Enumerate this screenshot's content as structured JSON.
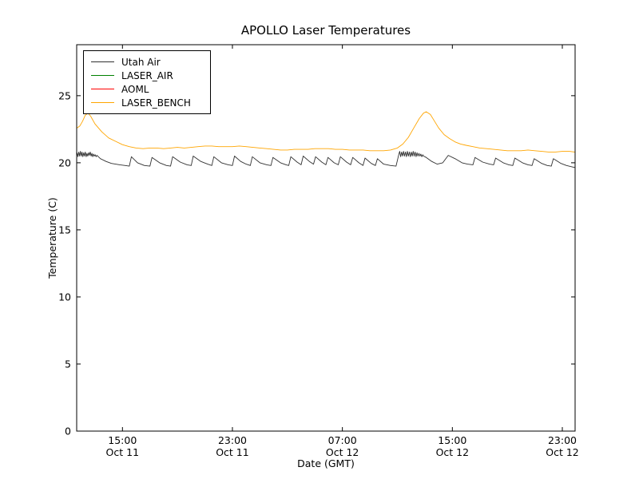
{
  "chart_data": {
    "type": "line",
    "title": "APOLLO Laser Temperatures",
    "xlabel": "Date (GMT)",
    "ylabel": "Temperature (C)",
    "grid": false,
    "legend_position": "upper left",
    "x_unit": "hours since Oct 11 00:00 GMT",
    "xlim": [
      11.67,
      47.93
    ],
    "ylim": [
      0,
      28.8
    ],
    "yticks": [
      0,
      5,
      10,
      15,
      20,
      25
    ],
    "xticks": [
      {
        "value": 15,
        "time": "15:00",
        "date": "Oct 11"
      },
      {
        "value": 23,
        "time": "23:00",
        "date": "Oct 11"
      },
      {
        "value": 31,
        "time": "07:00",
        "date": "Oct 12"
      },
      {
        "value": 39,
        "time": "15:00",
        "date": "Oct 12"
      },
      {
        "value": 47,
        "time": "23:00",
        "date": "Oct 12"
      }
    ],
    "series": [
      {
        "name": "Utah Air",
        "color": "#303030",
        "points": [
          [
            11.7,
            20.75
          ],
          [
            11.76,
            20.45
          ],
          [
            11.82,
            20.8
          ],
          [
            11.88,
            20.5
          ],
          [
            11.94,
            20.85
          ],
          [
            12.0,
            20.5
          ],
          [
            12.06,
            20.8
          ],
          [
            12.12,
            20.45
          ],
          [
            12.18,
            20.75
          ],
          [
            12.24,
            20.5
          ],
          [
            12.3,
            20.8
          ],
          [
            12.36,
            20.45
          ],
          [
            12.42,
            20.7
          ],
          [
            12.48,
            20.5
          ],
          [
            12.54,
            20.75
          ],
          [
            12.6,
            20.55
          ],
          [
            12.66,
            20.8
          ],
          [
            12.72,
            20.5
          ],
          [
            12.78,
            20.7
          ],
          [
            12.84,
            20.45
          ],
          [
            12.9,
            20.65
          ],
          [
            12.96,
            20.5
          ],
          [
            13.02,
            20.6
          ],
          [
            13.08,
            20.45
          ],
          [
            13.14,
            20.55
          ],
          [
            13.4,
            20.3
          ],
          [
            13.8,
            20.1
          ],
          [
            14.2,
            19.95
          ],
          [
            14.8,
            19.85
          ],
          [
            15.2,
            19.8
          ],
          [
            15.5,
            19.75
          ],
          [
            15.65,
            20.45
          ],
          [
            16.1,
            20.0
          ],
          [
            16.6,
            19.8
          ],
          [
            17.0,
            19.75
          ],
          [
            17.15,
            20.4
          ],
          [
            17.7,
            20.0
          ],
          [
            18.2,
            19.8
          ],
          [
            18.5,
            19.75
          ],
          [
            18.65,
            20.45
          ],
          [
            19.2,
            20.05
          ],
          [
            19.7,
            19.85
          ],
          [
            20.0,
            19.8
          ],
          [
            20.15,
            20.5
          ],
          [
            20.7,
            20.1
          ],
          [
            21.2,
            19.9
          ],
          [
            21.5,
            19.8
          ],
          [
            21.65,
            20.45
          ],
          [
            22.2,
            20.0
          ],
          [
            22.7,
            19.85
          ],
          [
            23.0,
            19.8
          ],
          [
            23.15,
            20.5
          ],
          [
            23.6,
            20.1
          ],
          [
            24.0,
            19.9
          ],
          [
            24.3,
            19.8
          ],
          [
            24.45,
            20.45
          ],
          [
            25.0,
            20.0
          ],
          [
            25.5,
            19.85
          ],
          [
            25.8,
            19.8
          ],
          [
            25.95,
            20.4
          ],
          [
            26.5,
            20.0
          ],
          [
            26.9,
            19.85
          ],
          [
            27.1,
            19.8
          ],
          [
            27.25,
            20.45
          ],
          [
            27.7,
            20.05
          ],
          [
            28.0,
            19.85
          ],
          [
            28.15,
            20.5
          ],
          [
            28.6,
            20.1
          ],
          [
            28.9,
            19.9
          ],
          [
            29.05,
            20.45
          ],
          [
            29.5,
            20.05
          ],
          [
            29.8,
            19.85
          ],
          [
            29.95,
            20.4
          ],
          [
            30.4,
            20.0
          ],
          [
            30.7,
            19.85
          ],
          [
            30.85,
            20.45
          ],
          [
            31.3,
            20.05
          ],
          [
            31.6,
            19.85
          ],
          [
            31.75,
            20.4
          ],
          [
            32.2,
            20.0
          ],
          [
            32.5,
            19.8
          ],
          [
            32.65,
            20.35
          ],
          [
            33.1,
            19.95
          ],
          [
            33.4,
            19.8
          ],
          [
            33.55,
            20.3
          ],
          [
            34.0,
            19.9
          ],
          [
            34.5,
            19.8
          ],
          [
            34.9,
            19.75
          ],
          [
            35.1,
            20.6
          ],
          [
            35.17,
            20.85
          ],
          [
            35.24,
            20.45
          ],
          [
            35.31,
            20.8
          ],
          [
            35.38,
            20.5
          ],
          [
            35.45,
            20.85
          ],
          [
            35.52,
            20.5
          ],
          [
            35.59,
            20.8
          ],
          [
            35.66,
            20.45
          ],
          [
            35.73,
            20.85
          ],
          [
            35.8,
            20.5
          ],
          [
            35.87,
            20.8
          ],
          [
            35.94,
            20.45
          ],
          [
            36.01,
            20.8
          ],
          [
            36.08,
            20.5
          ],
          [
            36.15,
            20.85
          ],
          [
            36.22,
            20.5
          ],
          [
            36.29,
            20.8
          ],
          [
            36.36,
            20.45
          ],
          [
            36.43,
            20.75
          ],
          [
            36.5,
            20.5
          ],
          [
            36.57,
            20.7
          ],
          [
            36.64,
            20.5
          ],
          [
            36.71,
            20.65
          ],
          [
            36.78,
            20.45
          ],
          [
            36.85,
            20.6
          ],
          [
            36.9,
            20.5
          ],
          [
            37.1,
            20.4
          ],
          [
            37.5,
            20.1
          ],
          [
            37.9,
            19.9
          ],
          [
            38.3,
            20.0
          ],
          [
            38.7,
            20.55
          ],
          [
            39.2,
            20.3
          ],
          [
            39.7,
            20.0
          ],
          [
            40.1,
            19.9
          ],
          [
            40.5,
            19.85
          ],
          [
            40.65,
            20.4
          ],
          [
            41.2,
            20.05
          ],
          [
            41.7,
            19.9
          ],
          [
            42.0,
            19.85
          ],
          [
            42.15,
            20.35
          ],
          [
            42.7,
            20.0
          ],
          [
            43.1,
            19.85
          ],
          [
            43.4,
            19.8
          ],
          [
            43.55,
            20.35
          ],
          [
            44.1,
            20.0
          ],
          [
            44.5,
            19.85
          ],
          [
            44.8,
            19.8
          ],
          [
            44.95,
            20.3
          ],
          [
            45.5,
            19.95
          ],
          [
            45.9,
            19.8
          ],
          [
            46.2,
            19.75
          ],
          [
            46.35,
            20.3
          ],
          [
            46.9,
            19.95
          ],
          [
            47.3,
            19.8
          ],
          [
            47.9,
            19.65
          ]
        ]
      },
      {
        "name": "LASER_AIR",
        "color": "#008000",
        "points": []
      },
      {
        "name": "AOML",
        "color": "#ff0000",
        "points": []
      },
      {
        "name": "LASER_BENCH",
        "color": "#ffa500",
        "points": [
          [
            11.7,
            22.6
          ],
          [
            11.9,
            22.75
          ],
          [
            12.1,
            23.1
          ],
          [
            12.3,
            23.55
          ],
          [
            12.5,
            23.7
          ],
          [
            12.7,
            23.45
          ],
          [
            13.0,
            22.9
          ],
          [
            13.5,
            22.3
          ],
          [
            14.0,
            21.85
          ],
          [
            14.5,
            21.6
          ],
          [
            15.0,
            21.35
          ],
          [
            15.5,
            21.2
          ],
          [
            16.0,
            21.1
          ],
          [
            16.5,
            21.05
          ],
          [
            17.0,
            21.1
          ],
          [
            17.5,
            21.1
          ],
          [
            18.0,
            21.05
          ],
          [
            18.5,
            21.1
          ],
          [
            19.0,
            21.15
          ],
          [
            19.5,
            21.1
          ],
          [
            20.0,
            21.15
          ],
          [
            20.5,
            21.2
          ],
          [
            21.0,
            21.25
          ],
          [
            21.5,
            21.25
          ],
          [
            22.0,
            21.2
          ],
          [
            22.5,
            21.2
          ],
          [
            23.0,
            21.2
          ],
          [
            23.5,
            21.25
          ],
          [
            24.0,
            21.2
          ],
          [
            24.5,
            21.15
          ],
          [
            25.0,
            21.1
          ],
          [
            25.5,
            21.05
          ],
          [
            26.0,
            21.0
          ],
          [
            26.5,
            20.95
          ],
          [
            27.0,
            20.95
          ],
          [
            27.5,
            21.0
          ],
          [
            28.0,
            21.0
          ],
          [
            28.5,
            21.0
          ],
          [
            29.0,
            21.05
          ],
          [
            29.5,
            21.05
          ],
          [
            30.0,
            21.05
          ],
          [
            30.5,
            21.0
          ],
          [
            31.0,
            21.0
          ],
          [
            31.5,
            20.95
          ],
          [
            32.0,
            20.95
          ],
          [
            32.5,
            20.95
          ],
          [
            33.0,
            20.9
          ],
          [
            33.5,
            20.9
          ],
          [
            34.0,
            20.9
          ],
          [
            34.5,
            20.95
          ],
          [
            35.0,
            21.1
          ],
          [
            35.4,
            21.4
          ],
          [
            35.8,
            21.9
          ],
          [
            36.2,
            22.6
          ],
          [
            36.6,
            23.3
          ],
          [
            36.9,
            23.7
          ],
          [
            37.1,
            23.8
          ],
          [
            37.4,
            23.6
          ],
          [
            37.7,
            23.1
          ],
          [
            38.0,
            22.6
          ],
          [
            38.4,
            22.1
          ],
          [
            38.8,
            21.8
          ],
          [
            39.2,
            21.55
          ],
          [
            39.6,
            21.4
          ],
          [
            40.0,
            21.3
          ],
          [
            40.5,
            21.2
          ],
          [
            41.0,
            21.1
          ],
          [
            41.5,
            21.05
          ],
          [
            42.0,
            21.0
          ],
          [
            42.5,
            20.95
          ],
          [
            43.0,
            20.9
          ],
          [
            43.5,
            20.9
          ],
          [
            44.0,
            20.9
          ],
          [
            44.5,
            20.95
          ],
          [
            45.0,
            20.9
          ],
          [
            45.5,
            20.85
          ],
          [
            46.0,
            20.8
          ],
          [
            46.5,
            20.8
          ],
          [
            47.0,
            20.85
          ],
          [
            47.5,
            20.85
          ],
          [
            47.9,
            20.8
          ]
        ]
      }
    ]
  }
}
